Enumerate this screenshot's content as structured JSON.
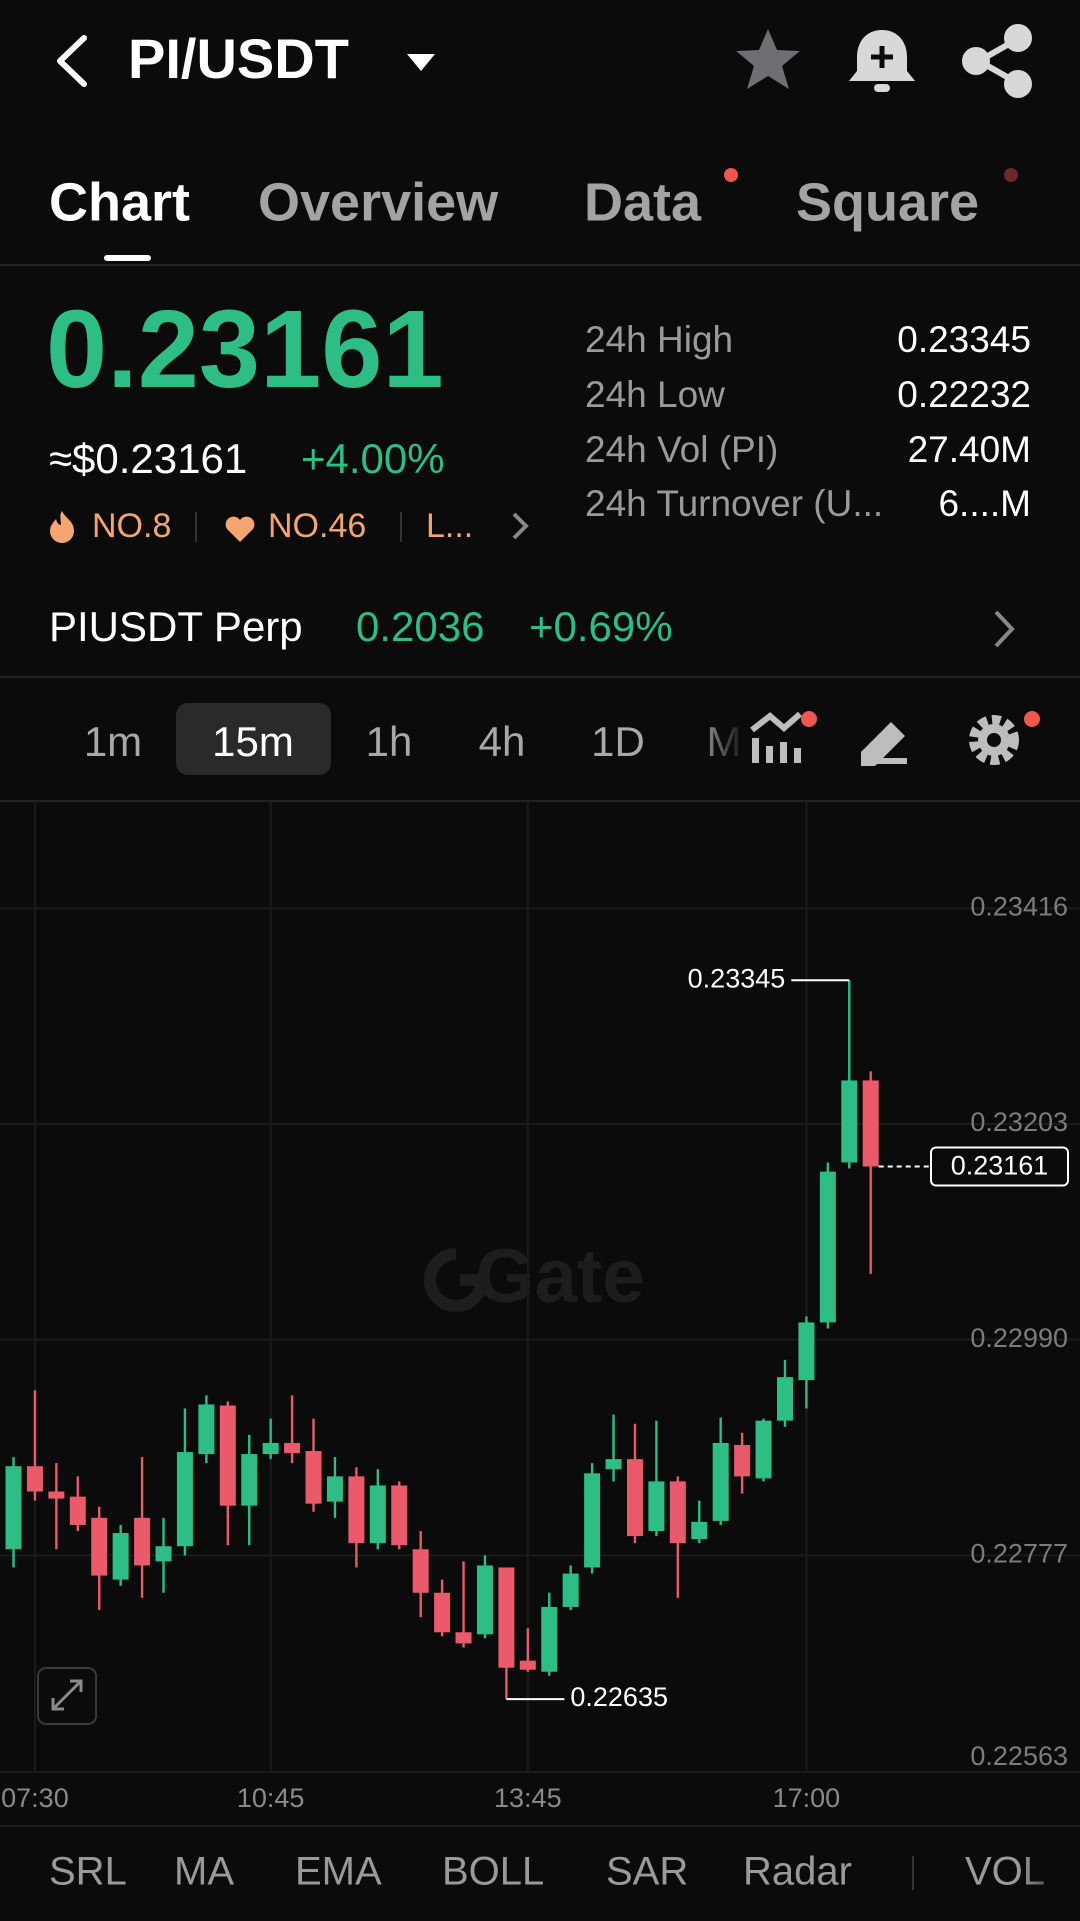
{
  "header": {
    "title": "PI/USDT"
  },
  "tabs": [
    "Chart",
    "Overview",
    "Data",
    "Square"
  ],
  "ticker": {
    "price": "0.23161",
    "usd_price": "≈$0.23161",
    "change": "+4.00%",
    "ranks": [
      "NO.8",
      "NO.46",
      "L..."
    ]
  },
  "stats": [
    [
      "24h High",
      "0.23345"
    ],
    [
      "24h Low",
      "0.22232"
    ],
    [
      "24h Vol (PI)",
      "27.40M"
    ],
    [
      "24h Turnover (U...",
      "6....M"
    ]
  ],
  "perp": {
    "name": "PIUSDT Perp",
    "price": "0.2036",
    "change": "+0.69%"
  },
  "intervals": [
    "1m",
    "15m",
    "1h",
    "4h",
    "1D",
    "M"
  ],
  "chart_data": {
    "type": "candlestick",
    "categories": [
      null,
      "07:30",
      null,
      null,
      null,
      null,
      null,
      null,
      null,
      null,
      null,
      null,
      "10:45",
      null,
      null,
      null,
      null,
      null,
      null,
      null,
      null,
      null,
      null,
      null,
      "13:45",
      null,
      null,
      null,
      null,
      null,
      null,
      null,
      null,
      null,
      null,
      null,
      null,
      "17:00",
      null,
      null,
      null
    ],
    "open": [
      0.22783,
      0.22865,
      0.2284,
      0.22835,
      0.22814,
      0.22753,
      0.22814,
      0.22771,
      0.22786,
      0.22877,
      0.22925,
      0.22826,
      0.22877,
      0.22888,
      0.2288,
      0.2283,
      0.22855,
      0.22789,
      0.22846,
      0.22783,
      0.2274,
      0.22701,
      0.22699,
      0.22765,
      0.22673,
      0.22662,
      0.22726,
      0.22765,
      0.22862,
      0.22872,
      0.22801,
      0.2285,
      0.22793,
      0.22811,
      0.22886,
      0.22853,
      0.2291,
      0.2295,
      0.23007,
      0.23165,
      0.23246
    ],
    "high": [
      0.22874,
      0.2294,
      0.22868,
      0.22855,
      0.22825,
      0.22807,
      0.22874,
      0.22814,
      0.22922,
      0.22935,
      0.22929,
      0.22896,
      0.22912,
      0.22935,
      0.22912,
      0.22874,
      0.22864,
      0.22862,
      0.2285,
      0.22801,
      0.22753,
      0.22771,
      0.22777,
      0.22765,
      0.22705,
      0.2274,
      0.22767,
      0.22868,
      0.22916,
      0.22907,
      0.2291,
      0.22855,
      0.22831,
      0.22913,
      0.22898,
      0.22912,
      0.2297,
      0.23013,
      0.23165,
      0.23345,
      0.23255
    ],
    "low": [
      0.22765,
      0.22831,
      0.22783,
      0.22801,
      0.22723,
      0.22747,
      0.22735,
      0.2274,
      0.22777,
      0.22868,
      0.22787,
      0.22787,
      0.22872,
      0.22868,
      0.2282,
      0.22814,
      0.22765,
      0.22783,
      0.22783,
      0.22716,
      0.22697,
      0.22686,
      0.22695,
      0.22635,
      0.22662,
      0.22658,
      0.22723,
      0.22759,
      0.2285,
      0.22789,
      0.22796,
      0.22735,
      0.22789,
      0.22807,
      0.22838,
      0.2285,
      0.22904,
      0.22922,
      0.23001,
      0.23159,
      0.23055
    ],
    "close": [
      0.22865,
      0.2284,
      0.22833,
      0.22807,
      0.22757,
      0.22799,
      0.22767,
      0.22786,
      0.22879,
      0.22926,
      0.22826,
      0.22877,
      0.22888,
      0.22878,
      0.22828,
      0.22855,
      0.22789,
      0.22846,
      0.22787,
      0.2274,
      0.22701,
      0.2269,
      0.22767,
      0.22666,
      0.22664,
      0.22726,
      0.22759,
      0.22858,
      0.22872,
      0.22796,
      0.2285,
      0.22789,
      0.2281,
      0.22888,
      0.22855,
      0.2291,
      0.22953,
      0.23007,
      0.23156,
      0.23246,
      0.23161
    ],
    "up_color": "#2dbd85",
    "down_color": "#ea5a6b",
    "ylim": [
      0.22563,
      0.23521
    ],
    "yticks": [
      0.22563,
      0.22777,
      {
        "value": 0.2299,
        "label": "0.22990"
      },
      0.23203,
      0.23416
    ],
    "grid": true,
    "annotations": {
      "high": 0.23345,
      "low": 0.22635,
      "last": 0.23161
    },
    "watermark": "Gate"
  },
  "indicators": [
    "SRL",
    "MA",
    "EMA",
    "BOLL",
    "SAR",
    "Radar",
    "VOL"
  ]
}
